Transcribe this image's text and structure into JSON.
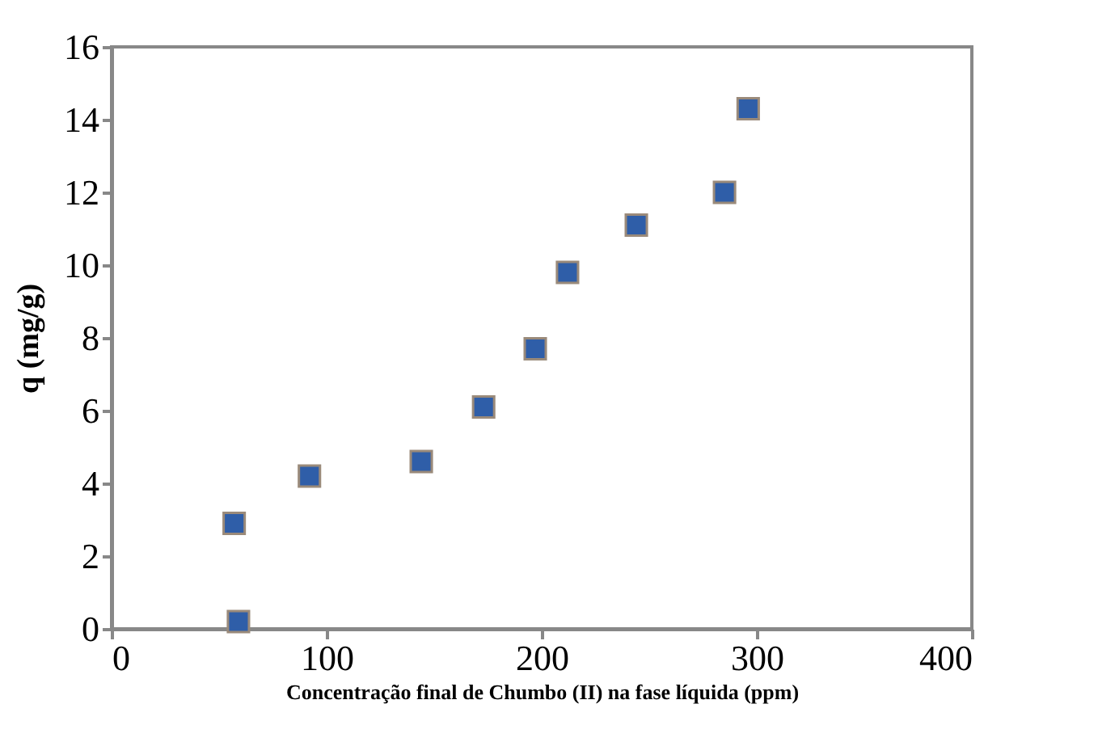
{
  "chart_data": {
    "type": "scatter",
    "xlabel": "Concentração final de Chumbo (II) na fase líquida (ppm)",
    "ylabel": "q (mg/g)",
    "x": [
      57,
      59,
      92,
      144,
      173,
      197,
      212,
      244,
      285,
      296
    ],
    "series": [
      {
        "color": "#2f5ea8",
        "values": [
          2.9,
          0.2,
          4.2,
          4.6,
          6.1,
          7.7,
          9.8,
          11.1,
          12.0,
          14.3
        ]
      }
    ],
    "xlim": [
      0,
      400
    ],
    "xticks": [
      0,
      100,
      200,
      300,
      400
    ],
    "ylim": [
      0,
      16
    ],
    "yticks": [
      0,
      2,
      4,
      6,
      8,
      10,
      12,
      14,
      16
    ],
    "grid": false,
    "legend": false,
    "marker": "square"
  }
}
